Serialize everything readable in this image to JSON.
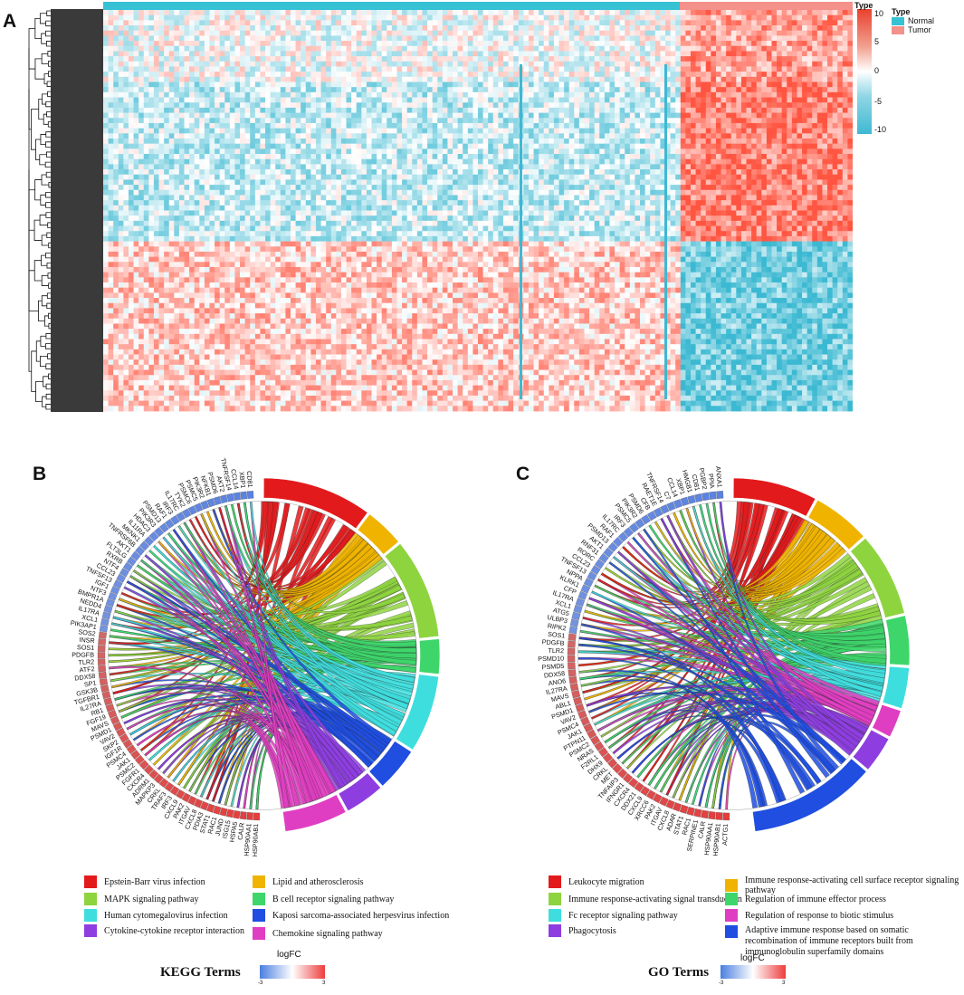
{
  "panels": {
    "a": "A",
    "b": "B",
    "c": "C"
  },
  "heatmap": {
    "annotation_title": "Type",
    "scale_ticks": [
      "10",
      "5",
      "0",
      "-5",
      "-10"
    ],
    "type_legend": [
      {
        "label": "Normal",
        "color": "#36c2d4"
      },
      {
        "label": "Tumor",
        "color": "#f4918a"
      }
    ]
  },
  "kegg": {
    "title": "KEGG Terms",
    "lfc_title": "logFC",
    "lfc_min": "-3",
    "lfc_max": "3",
    "legend": [
      {
        "label": "Epstein-Barr virus infection",
        "color": "#e31a1c"
      },
      {
        "label": "Lipid and atherosclerosis",
        "color": "#f0b400"
      },
      {
        "label": "MAPK signaling pathway",
        "color": "#8ed43f"
      },
      {
        "label": "B cell receptor signaling pathway",
        "color": "#3ed66b"
      },
      {
        "label": "Human cytomegalovirus infection",
        "color": "#3fdede"
      },
      {
        "label": "Kaposi sarcoma-associated herpesvirus infection",
        "color": "#1f4ee0"
      },
      {
        "label": "Cytokine-cytokine receptor interaction",
        "color": "#8e3ee0"
      },
      {
        "label": "Chemokine signaling pathway",
        "color": "#e03ec2"
      }
    ],
    "genes": [
      "HSP90AB1",
      "HSP90AA1",
      "CALR",
      "HSPA5",
      "ISG15",
      "JUND",
      "RAC1",
      "STAT1",
      "PDIA3",
      "CXCL8",
      "ITGAV",
      "PAK2",
      "CXCL9",
      "IRF3",
      "TRAF3",
      "CRKL",
      "MAPKP3",
      "ADRM1",
      "CXCR4",
      "FGFR1",
      "PSMC2",
      "JAK1",
      "PSMC4",
      "IGF1R",
      "SKP2",
      "VAV2",
      "PSMD1",
      "MAVS",
      "FGF19",
      "RB1",
      "IL27RA",
      "TGFBR1",
      "GSK3B",
      "SP1",
      "DDX58",
      "ATF2",
      "TLR2",
      "PDGFB",
      "SOS1",
      "INSR",
      "SOS2",
      "PIK3AP1",
      "XCL1",
      "IL17RA",
      "NEDD4",
      "BMPR1A",
      "NTF3",
      "IGF1",
      "TNFSF13",
      "CCL23",
      "NTF4",
      "RXRB",
      "FLT3LG",
      "AKT1",
      "TNFRSF6B",
      "MKNK1",
      "IL11RA",
      "HDAC3",
      "PIK3R3",
      "PSMD13",
      "RAF1",
      "IRF3",
      "IL17RC",
      "TYK2",
      "PSMC6",
      "PSMC5",
      "PIK3R2",
      "NFKB1",
      "PSMD6",
      "AKT2",
      "TNFRSF14",
      "CCL14",
      "XBP1",
      "CD81"
    ]
  },
  "go": {
    "title": "GO Terms",
    "lfc_title": "logFC",
    "lfc_min": "-3",
    "lfc_max": "3",
    "legend": [
      {
        "label": "Leukocyte migration",
        "color": "#e31a1c"
      },
      {
        "label": "Immune response-activating cell surface receptor signaling pathway",
        "color": "#f0b400"
      },
      {
        "label": "Immune response-activating signal transduction",
        "color": "#8ed43f"
      },
      {
        "label": "Regulation of immune effector process",
        "color": "#3ed66b"
      },
      {
        "label": "Fc receptor signaling pathway",
        "color": "#3fdede"
      },
      {
        "label": "Regulation of response to biotic stimulus",
        "color": "#e03ec2"
      },
      {
        "label": "Phagocytosis",
        "color": "#8e3ee0"
      },
      {
        "label": "Adaptive immune response based on somatic recombination of immune receptors built from immunoglobulin superfamily domains",
        "color": "#1f4ee0"
      }
    ],
    "genes": [
      "ACTG1",
      "HSP90AB1",
      "HSP90AA1",
      "CALR",
      "SERPINE1",
      "RAC1",
      "STAT1",
      "ADAR",
      "CXCL8",
      "ITGAV",
      "PAK2",
      "XRCC6",
      "CXCL9",
      "DDX21",
      "CXCR4",
      "IFNGR1",
      "TNFAIP3",
      "MET",
      "CRKL",
      "DHX9",
      "F2RL1",
      "NRAS",
      "PSMC2",
      "PTPN11",
      "JAK1",
      "PSMC4",
      "VAV2",
      "PSMD1",
      "ABL1",
      "MAVS",
      "IL27RA",
      "ANO6",
      "DDX58",
      "PSMD5",
      "PSMD10",
      "TLR2",
      "PDGFB",
      "SOS1",
      "RIPK2",
      "ULBP3",
      "ATG5",
      "XCL1",
      "IL17RA",
      "CFP",
      "KLRK1",
      "NPPA",
      "TNFSF13",
      "CCL23",
      "RORC",
      "RNF31",
      "AKT1",
      "PSMD13",
      "RAF1",
      "IL17RC",
      "IRF3",
      "PSMC5",
      "PIK3R2",
      "PSMD6",
      "CFB",
      "RAET1E",
      "TNFRSF14",
      "C7",
      "CCL14",
      "XBP1",
      "HMGB1",
      "CD81",
      "PGBP2",
      "PPIA",
      "ANXA1"
    ]
  }
}
